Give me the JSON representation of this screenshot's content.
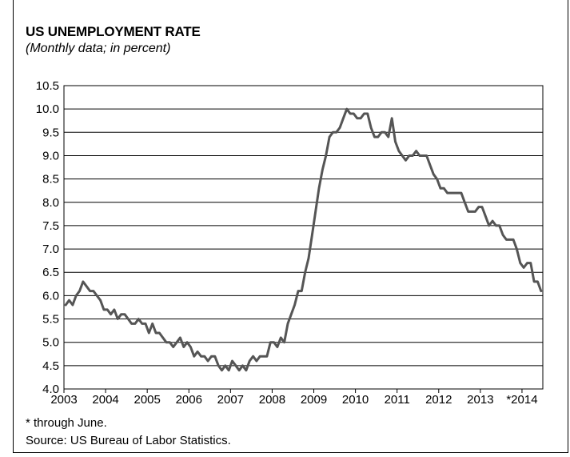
{
  "chart_data": {
    "type": "line",
    "title": "US UNEMPLOYMENT RATE",
    "subtitle": "(Monthly data; in percent)",
    "ylim": [
      4.0,
      10.5
    ],
    "xlim": [
      "2003-01",
      "2014-06"
    ],
    "grid": true,
    "y_ticks": [
      "10.5",
      "10.0",
      "9.5",
      "9.0",
      "8.5",
      "8.0",
      "7.5",
      "7.0",
      "6.5",
      "6.0",
      "5.5",
      "5.0",
      "4.5",
      "4.0"
    ],
    "x_ticks": [
      "2003",
      "2004",
      "2005",
      "2006",
      "2007",
      "2008",
      "2009",
      "2010",
      "2011",
      "2012",
      "2013",
      "*2014"
    ],
    "line_color": "#555555",
    "series": [
      {
        "start": "2003-01",
        "values": [
          5.8,
          5.9,
          5.8,
          6.0,
          6.1,
          6.3,
          6.2,
          6.1,
          6.1,
          6.0,
          5.9,
          5.7,
          5.7,
          5.6,
          5.7,
          5.5,
          5.6,
          5.6,
          5.5,
          5.4,
          5.4,
          5.5,
          5.4,
          5.4,
          5.2,
          5.4,
          5.2,
          5.2,
          5.1,
          5.0,
          5.0,
          4.9,
          5.0,
          5.1,
          4.9,
          5.0,
          4.9,
          4.7,
          4.8,
          4.7,
          4.7,
          4.6,
          4.7,
          4.7,
          4.5,
          4.4,
          4.5,
          4.4,
          4.6,
          4.5,
          4.4,
          4.5,
          4.4,
          4.6,
          4.7,
          4.6,
          4.7,
          4.7,
          4.7,
          5.0,
          5.0,
          4.9,
          5.1,
          5.0,
          5.4,
          5.6,
          5.8,
          6.1,
          6.1,
          6.5,
          6.8,
          7.3,
          7.8,
          8.3,
          8.7,
          9.0,
          9.4,
          9.5,
          9.5,
          9.6,
          9.8,
          10.0,
          9.9,
          9.9,
          9.8,
          9.8,
          9.9,
          9.9,
          9.6,
          9.4,
          9.4,
          9.5,
          9.5,
          9.4,
          9.8,
          9.3,
          9.1,
          9.0,
          8.9,
          9.0,
          9.0,
          9.1,
          9.0,
          9.0,
          9.0,
          8.8,
          8.6,
          8.5,
          8.3,
          8.3,
          8.2,
          8.2,
          8.2,
          8.2,
          8.2,
          8.0,
          7.8,
          7.8,
          7.8,
          7.9,
          7.9,
          7.7,
          7.5,
          7.6,
          7.5,
          7.5,
          7.3,
          7.2,
          7.2,
          7.2,
          7.0,
          6.7,
          6.6,
          6.7,
          6.7,
          6.3,
          6.3,
          6.1
        ]
      }
    ]
  },
  "notes": {
    "footnote": "* through June.",
    "source": "Source: US Bureau of Labor Statistics."
  }
}
